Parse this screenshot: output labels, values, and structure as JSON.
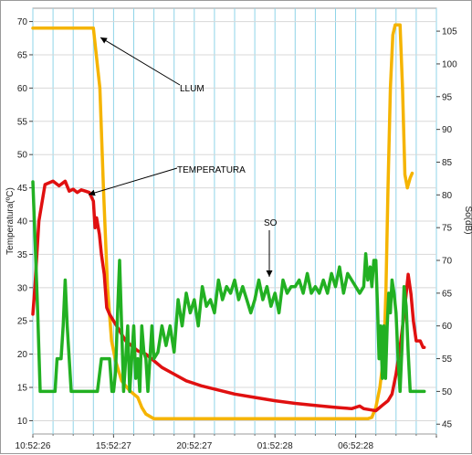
{
  "chart_data": {
    "type": "line",
    "left_axis": {
      "label": "Temperatura(ºC)",
      "range": [
        8,
        72
      ],
      "ticks": [
        10,
        15,
        20,
        25,
        30,
        35,
        40,
        45,
        50,
        55,
        60,
        65,
        70
      ]
    },
    "right_axis": {
      "label": "So(dB)",
      "range": [
        43.5,
        108.5
      ],
      "ticks": [
        45,
        50,
        55,
        60,
        65,
        70,
        75,
        80,
        85,
        90,
        95,
        100,
        105
      ]
    },
    "x_axis": {
      "range": [
        0,
        100
      ],
      "ticks": [
        {
          "x": 0,
          "label": "10:52:26"
        },
        {
          "x": 20,
          "label": "15:52:27"
        },
        {
          "x": 40,
          "label": "20:52:27"
        },
        {
          "x": 60,
          "label": "01:52:28"
        },
        {
          "x": 80,
          "label": "06:52:28"
        },
        {
          "x": 100,
          "label": ""
        }
      ]
    },
    "grid": true,
    "colors": {
      "llum": "#f5b400",
      "temperatura": "#e01010",
      "so": "#22b022",
      "grid_vertical": "#8fd4e8",
      "grid_horizontal": "#d8d8d8"
    },
    "annotations": [
      {
        "label": "LLUM"
      },
      {
        "label": "TEMPERATURA"
      },
      {
        "label": "SO"
      }
    ],
    "series": [
      {
        "key": "llum",
        "axis": "left",
        "points": [
          [
            0,
            69
          ],
          [
            1,
            69
          ],
          [
            15,
            69
          ],
          [
            16.6,
            60
          ],
          [
            17.5,
            45
          ],
          [
            18.5,
            30
          ],
          [
            19.5,
            22
          ],
          [
            20.5,
            19
          ],
          [
            22,
            16
          ],
          [
            24,
            14.5
          ],
          [
            26,
            13.5
          ],
          [
            27,
            12
          ],
          [
            28,
            11
          ],
          [
            30,
            10.3
          ],
          [
            40,
            10.3
          ],
          [
            60,
            10.3
          ],
          [
            82,
            10.3
          ],
          [
            83,
            10.3
          ],
          [
            84,
            10.5
          ],
          [
            85,
            12
          ],
          [
            86,
            15
          ],
          [
            87,
            20
          ],
          [
            87.5,
            30
          ],
          [
            88,
            45
          ],
          [
            88.6,
            60
          ],
          [
            89.2,
            68
          ],
          [
            89.8,
            69.5
          ],
          [
            91,
            69.5
          ],
          [
            91.6,
            60
          ],
          [
            92.2,
            47
          ],
          [
            92.8,
            45
          ],
          [
            93.5,
            46.5
          ],
          [
            94,
            47.2
          ]
        ]
      },
      {
        "key": "temperatura",
        "axis": "left",
        "points": [
          [
            0,
            26
          ],
          [
            0.5,
            30
          ],
          [
            1.5,
            40
          ],
          [
            3,
            45.5
          ],
          [
            5,
            46
          ],
          [
            6.5,
            45.3
          ],
          [
            8,
            46
          ],
          [
            9,
            44.5
          ],
          [
            10,
            44.8
          ],
          [
            11,
            44.3
          ],
          [
            12,
            44.7
          ],
          [
            13,
            44.5
          ],
          [
            14,
            44.3
          ],
          [
            15,
            43
          ],
          [
            15.4,
            39
          ],
          [
            15.8,
            40.5
          ],
          [
            16.5,
            38
          ],
          [
            17,
            35
          ],
          [
            17.7,
            32
          ],
          [
            18.3,
            27
          ],
          [
            19,
            26
          ],
          [
            20,
            25
          ],
          [
            21,
            24
          ],
          [
            22,
            23
          ],
          [
            23,
            22
          ],
          [
            24,
            21.5
          ],
          [
            25,
            21
          ],
          [
            26,
            20.5
          ],
          [
            28,
            20
          ],
          [
            30,
            19
          ],
          [
            32,
            18
          ],
          [
            35,
            17
          ],
          [
            38,
            16
          ],
          [
            42,
            15.2
          ],
          [
            46,
            14.6
          ],
          [
            50,
            14
          ],
          [
            55,
            13.5
          ],
          [
            60,
            13
          ],
          [
            65,
            12.6
          ],
          [
            70,
            12.3
          ],
          [
            75,
            12
          ],
          [
            79,
            11.8
          ],
          [
            81,
            12.2
          ],
          [
            82,
            11.8
          ],
          [
            84,
            11.6
          ],
          [
            85,
            11.5
          ],
          [
            86,
            12
          ],
          [
            87,
            12.5
          ],
          [
            88,
            13
          ],
          [
            89,
            14
          ],
          [
            90,
            17
          ],
          [
            91,
            21
          ],
          [
            92,
            26
          ],
          [
            93,
            32
          ],
          [
            93.7,
            29
          ],
          [
            94.3,
            25
          ],
          [
            95,
            22
          ],
          [
            96,
            22
          ],
          [
            96.7,
            21
          ],
          [
            97,
            21
          ]
        ]
      },
      {
        "key": "so",
        "axis": "right",
        "points": [
          [
            0,
            82
          ],
          [
            0.6,
            72
          ],
          [
            1.2,
            62
          ],
          [
            1.8,
            50
          ],
          [
            2.5,
            50
          ],
          [
            3.5,
            50
          ],
          [
            4,
            50
          ],
          [
            5,
            50
          ],
          [
            5.5,
            50
          ],
          [
            6,
            55
          ],
          [
            7,
            55
          ],
          [
            7.5,
            60
          ],
          [
            8,
            67
          ],
          [
            8.5,
            60
          ],
          [
            9,
            55
          ],
          [
            9.5,
            50
          ],
          [
            10,
            50
          ],
          [
            11,
            50
          ],
          [
            12,
            50
          ],
          [
            13,
            50
          ],
          [
            14,
            50
          ],
          [
            15,
            50
          ],
          [
            16,
            50
          ],
          [
            17,
            55
          ],
          [
            18,
            55
          ],
          [
            19,
            55
          ],
          [
            19.6,
            50
          ],
          [
            20,
            50
          ],
          [
            20.5,
            53
          ],
          [
            21,
            62
          ],
          [
            21.5,
            70
          ],
          [
            22,
            60
          ],
          [
            22.5,
            50
          ],
          [
            23,
            55
          ],
          [
            23.5,
            60
          ],
          [
            24,
            50
          ],
          [
            24.5,
            55
          ],
          [
            25,
            60
          ],
          [
            25.5,
            52
          ],
          [
            26,
            55
          ],
          [
            26.5,
            50
          ],
          [
            27,
            60
          ],
          [
            27.5,
            56
          ],
          [
            28,
            55
          ],
          [
            28.5,
            50
          ],
          [
            29,
            55
          ],
          [
            29.5,
            60
          ],
          [
            30,
            55
          ],
          [
            31,
            56
          ],
          [
            32,
            60
          ],
          [
            33,
            57
          ],
          [
            34,
            60
          ],
          [
            35,
            56
          ],
          [
            36,
            64
          ],
          [
            37,
            60
          ],
          [
            38,
            65
          ],
          [
            39,
            62
          ],
          [
            40,
            64
          ],
          [
            41,
            60
          ],
          [
            42,
            66
          ],
          [
            43,
            63
          ],
          [
            44,
            64
          ],
          [
            45,
            62
          ],
          [
            46,
            67
          ],
          [
            47,
            64
          ],
          [
            48,
            66
          ],
          [
            49,
            65
          ],
          [
            50,
            67
          ],
          [
            51,
            64
          ],
          [
            52,
            66
          ],
          [
            53,
            64
          ],
          [
            54,
            62
          ],
          [
            55,
            64
          ],
          [
            56,
            67
          ],
          [
            57,
            64
          ],
          [
            58,
            66
          ],
          [
            59,
            63
          ],
          [
            60,
            65
          ],
          [
            61,
            62
          ],
          [
            62,
            67
          ],
          [
            63,
            65
          ],
          [
            64,
            66
          ],
          [
            65,
            66
          ],
          [
            66,
            67
          ],
          [
            67,
            65
          ],
          [
            68,
            68
          ],
          [
            69,
            65
          ],
          [
            70,
            66
          ],
          [
            71,
            65
          ],
          [
            72,
            67
          ],
          [
            73,
            65
          ],
          [
            74,
            68
          ],
          [
            75,
            66
          ],
          [
            76,
            69
          ],
          [
            77,
            65
          ],
          [
            78,
            68
          ],
          [
            79,
            67
          ],
          [
            80,
            66
          ],
          [
            81,
            65
          ],
          [
            82,
            66
          ],
          [
            82.5,
            71
          ],
          [
            83,
            67
          ],
          [
            83.6,
            69
          ],
          [
            84,
            66
          ],
          [
            84.5,
            70
          ],
          [
            85,
            70
          ],
          [
            85.4,
            63
          ],
          [
            85.8,
            55
          ],
          [
            86.2,
            60
          ],
          [
            86.6,
            52
          ],
          [
            87,
            60
          ],
          [
            87.4,
            52
          ],
          [
            87.8,
            60
          ],
          [
            88.2,
            65
          ],
          [
            88.6,
            62
          ],
          [
            89,
            67
          ],
          [
            89.5,
            65
          ],
          [
            90,
            62
          ],
          [
            90.5,
            55
          ],
          [
            91,
            50
          ],
          [
            91.5,
            57
          ],
          [
            92,
            66
          ],
          [
            92.5,
            63
          ],
          [
            93,
            56
          ],
          [
            93.5,
            50
          ],
          [
            94.5,
            50
          ],
          [
            96,
            50
          ],
          [
            97,
            50
          ]
        ]
      }
    ]
  }
}
